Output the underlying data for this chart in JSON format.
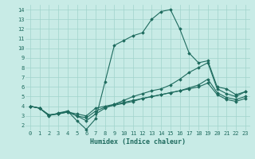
{
  "xlabel": "Humidex (Indice chaleur)",
  "bg_color": "#c8ebe6",
  "grid_color": "#a0d4cc",
  "line_color": "#1e6b5e",
  "xlim": [
    -0.5,
    23.5
  ],
  "ylim": [
    1.5,
    14.5
  ],
  "xticks": [
    0,
    1,
    2,
    3,
    4,
    5,
    6,
    7,
    8,
    9,
    10,
    11,
    12,
    13,
    14,
    15,
    16,
    17,
    18,
    19,
    20,
    21,
    22,
    23
  ],
  "yticks": [
    2,
    3,
    4,
    5,
    6,
    7,
    8,
    9,
    10,
    11,
    12,
    13,
    14
  ],
  "line1_x": [
    0,
    1,
    2,
    3,
    4,
    5,
    6,
    7,
    8,
    9,
    10,
    11,
    12,
    13,
    14,
    15,
    16,
    17,
    18,
    19,
    20,
    21,
    22,
    23
  ],
  "line1_y": [
    4.0,
    3.8,
    3.1,
    3.2,
    3.5,
    2.5,
    1.6,
    2.7,
    6.5,
    10.3,
    10.8,
    11.3,
    11.6,
    13.0,
    13.8,
    14.0,
    12.0,
    9.5,
    8.5,
    8.7,
    6.0,
    5.8,
    5.2,
    5.5
  ],
  "line2_x": [
    0,
    1,
    2,
    3,
    4,
    5,
    6,
    7,
    8,
    9,
    10,
    11,
    12,
    13,
    14,
    15,
    16,
    17,
    18,
    19,
    20,
    21,
    22,
    23
  ],
  "line2_y": [
    4.0,
    3.8,
    3.0,
    3.3,
    3.5,
    3.0,
    2.5,
    3.2,
    3.8,
    4.2,
    4.6,
    5.0,
    5.3,
    5.6,
    5.8,
    6.2,
    6.8,
    7.5,
    8.0,
    8.5,
    5.8,
    5.3,
    5.0,
    5.5
  ],
  "line3_x": [
    0,
    1,
    2,
    3,
    4,
    5,
    6,
    7,
    8,
    9,
    10,
    11,
    12,
    13,
    14,
    15,
    16,
    17,
    18,
    19,
    20,
    21,
    22,
    23
  ],
  "line3_y": [
    4.0,
    3.8,
    3.1,
    3.2,
    3.4,
    3.0,
    2.8,
    3.5,
    3.9,
    4.1,
    4.3,
    4.5,
    4.8,
    5.0,
    5.2,
    5.4,
    5.6,
    5.9,
    6.2,
    6.8,
    5.4,
    4.9,
    4.7,
    5.0
  ],
  "line4_x": [
    0,
    1,
    2,
    3,
    4,
    5,
    6,
    7,
    8,
    9,
    10,
    11,
    12,
    13,
    14,
    15,
    16,
    17,
    18,
    19,
    20,
    21,
    22,
    23
  ],
  "line4_y": [
    4.0,
    3.8,
    3.1,
    3.2,
    3.4,
    3.2,
    3.0,
    3.8,
    4.0,
    4.2,
    4.4,
    4.6,
    4.8,
    5.0,
    5.2,
    5.4,
    5.6,
    5.8,
    6.0,
    6.4,
    5.2,
    4.7,
    4.5,
    4.8
  ],
  "marker": "D",
  "marker_size": 1.8,
  "line_width": 0.8,
  "tick_fontsize": 5.0,
  "xlabel_fontsize": 6.0
}
